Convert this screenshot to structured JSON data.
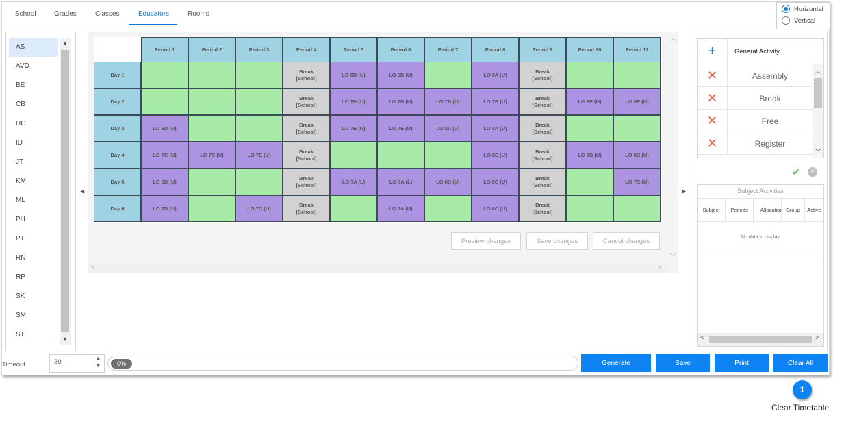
{
  "tabs": [
    {
      "label": "School"
    },
    {
      "label": "Grades"
    },
    {
      "label": "Classes"
    },
    {
      "label": "Educators",
      "active": true
    },
    {
      "label": "Rooms"
    }
  ],
  "orientation": {
    "horizontal": "Horizontal",
    "vertical": "Vertical",
    "selected": "Horizontal"
  },
  "educators": [
    "AS",
    "AVD",
    "BE",
    "CB",
    "HC",
    "ID",
    "JT",
    "KM",
    "ML",
    "PH",
    "PT",
    "RN",
    "RP",
    "SK",
    "SM",
    "ST"
  ],
  "selected_educator": "AS",
  "periods": [
    "Period 1",
    "Period 2",
    "Period 3",
    "Period 4",
    "Period 5",
    "Period 6",
    "Period 7",
    "Period 8",
    "Period 9",
    "Period 10",
    "Period 11"
  ],
  "days": [
    "Day 1",
    "Day 2",
    "Day 3",
    "Day 4",
    "Day 5",
    "Day 6"
  ],
  "grid": [
    [
      "",
      "",
      "",
      "Break\n[School]",
      "LO 8D (U)",
      "LO 8D (U)",
      "",
      "LO 8A (U)",
      "Break\n[School]",
      "",
      ""
    ],
    [
      "",
      "",
      "",
      "Break\n[School]",
      "LO 7D (U)",
      "LO 7D (U)",
      "LO 7B (U)",
      "LO 7B (U)",
      "Break\n[School]",
      "LO 8E (U)",
      "LO 8E (U)"
    ],
    [
      "LO 8D (U)",
      "",
      "",
      "Break\n[School]",
      "LO 7E (U)",
      "LO 7E (U)",
      "LO 8A (U)",
      "LO 8A (U)",
      "Break\n[School]",
      "",
      ""
    ],
    [
      "LO 7C (U)",
      "LO 7C (U)",
      "LO 7E (U)",
      "Break\n[School]",
      "",
      "",
      "",
      "LO 8E (U)",
      "Break\n[School]",
      "LO 8B (U)",
      "LO 8B (U)"
    ],
    [
      "LO 8B (U)",
      "",
      "",
      "Break\n[School]",
      "LO 7A (L)",
      "LO 7A (L)",
      "LO 8C (U)",
      "LO 8C (U)",
      "Break\n[School]",
      "",
      "LO 7B (U)"
    ],
    [
      "LO 7D (U)",
      "",
      "LO 7C (U)",
      "Break\n[School]",
      "",
      "LO 7A (U)",
      "",
      "LO 8C (U)",
      "Break\n[School]",
      "",
      ""
    ]
  ],
  "timetable_actions": {
    "preview": "Preview changes",
    "save": "Save changes",
    "cancel": "Cancel changes"
  },
  "activities": {
    "header": "General Activity",
    "items": [
      "Assembly",
      "Break",
      "Free",
      "Register"
    ]
  },
  "subject_activities": {
    "title": "Subject Activities",
    "columns": [
      "Subject",
      "Periods",
      "Allocation",
      "Group",
      "Active"
    ],
    "empty": "No data to display"
  },
  "bottom": {
    "timeout_label": "Timeout",
    "timeout_value": "30",
    "progress": "0%",
    "generate": "Generate",
    "save": "Save",
    "print": "Print",
    "clear_all": "Clear All"
  },
  "callout": {
    "number": "1",
    "caption": "Clear Timetable"
  },
  "colors": {
    "accent": "#0e83f3",
    "header": "#9fd3e3",
    "free": "#a8eba8",
    "lesson": "#ac94e2",
    "break": "#d2d2d2",
    "remove": "#e0583a"
  }
}
